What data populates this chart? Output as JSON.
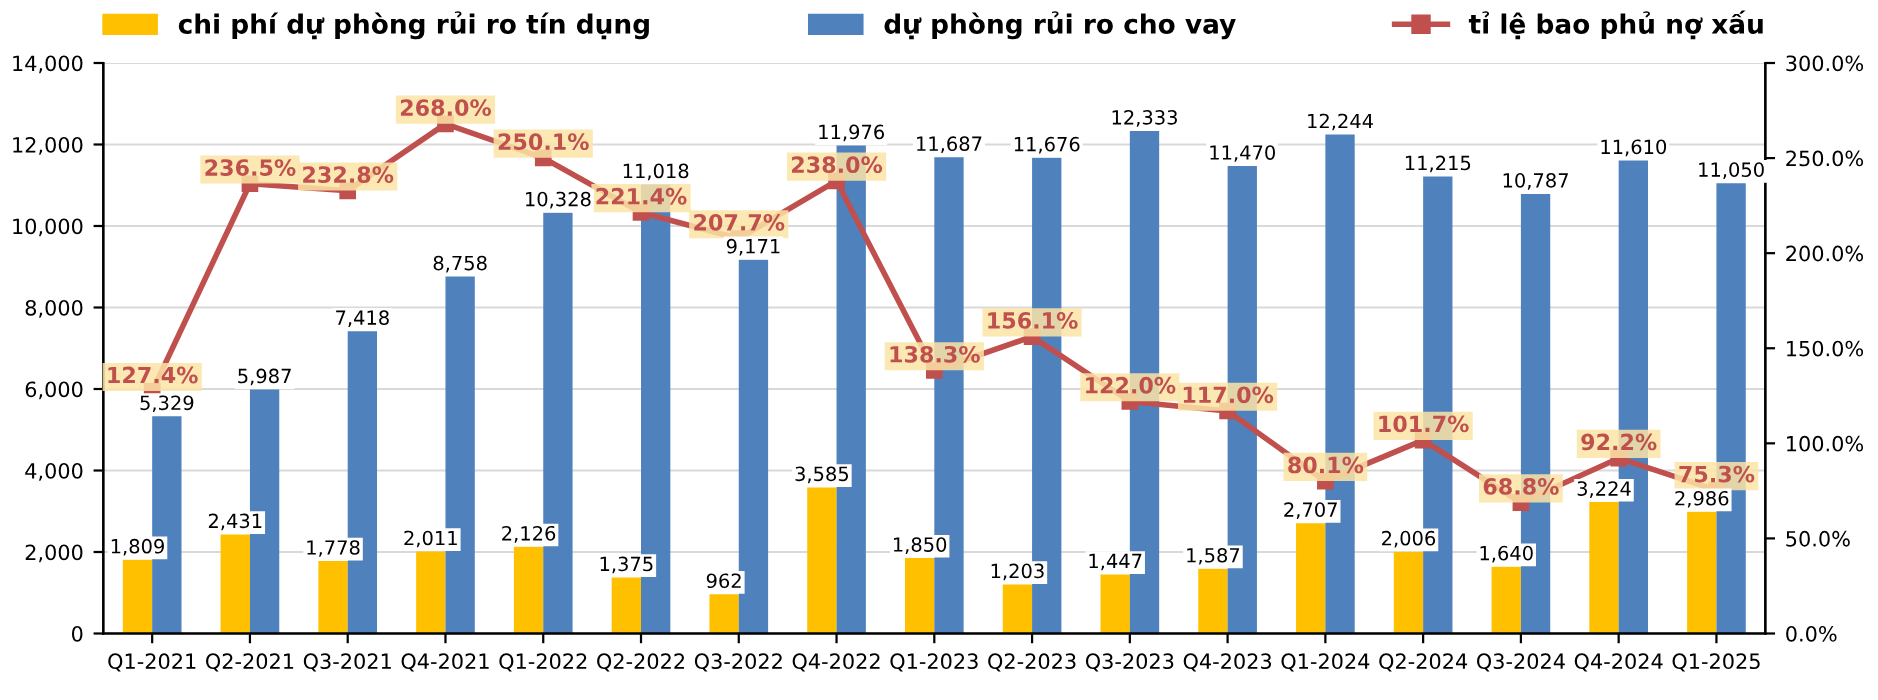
{
  "chart_data": {
    "type": "bar",
    "categories": [
      "Q1-2021",
      "Q2-2021",
      "Q3-2021",
      "Q4-2021",
      "Q1-2022",
      "Q2-2022",
      "Q3-2022",
      "Q4-2022",
      "Q1-2023",
      "Q2-2023",
      "Q3-2023",
      "Q4-2023",
      "Q1-2024",
      "Q2-2024",
      "Q3-2024",
      "Q4-2024",
      "Q1-2025"
    ],
    "series": [
      {
        "name": "chi phí dự phòng rủi ro tín dụng",
        "color": "#ffc000",
        "values": [
          1809,
          2431,
          1778,
          2011,
          2126,
          1375,
          962,
          3585,
          1850,
          1203,
          1447,
          1587,
          2707,
          2006,
          1640,
          3224,
          2986
        ],
        "value_labels": [
          "1,809",
          "2,431",
          "1,778",
          "2,011",
          "2,126",
          "1,375",
          "962",
          "3,585",
          "1,850",
          "1,203",
          "1,447",
          "1,587",
          "2,707",
          "2,006",
          "1,640",
          "3,224",
          "2,986"
        ]
      },
      {
        "name": "dự phòng rủi ro cho vay",
        "color": "#4f81bd",
        "values": [
          5329,
          5987,
          7418,
          8758,
          10328,
          11018,
          9171,
          11976,
          11687,
          11676,
          12333,
          11470,
          12244,
          11215,
          10787,
          11610,
          11050
        ],
        "value_labels": [
          "5,329",
          "5,987",
          "7,418",
          "8,758",
          "10,328",
          "11,018",
          "9,171",
          "11,976",
          "11,687",
          "11,676",
          "12,333",
          "11,470",
          "12,244",
          "11,215",
          "10,787",
          "11,610",
          "11,050"
        ]
      },
      {
        "name": "tỉ lệ bao phủ nợ xấu",
        "type": "line",
        "axis": "y2",
        "color": "#c0504d",
        "marker": "square",
        "values": [
          127.4,
          236.5,
          232.8,
          268.0,
          250.1,
          221.4,
          207.7,
          238.0,
          138.3,
          156.1,
          122.0,
          117.0,
          80.1,
          101.7,
          68.8,
          92.2,
          75.3
        ],
        "value_labels": [
          "127.4%",
          "236.5%",
          "232.8%",
          "268.0%",
          "250.1%",
          "221.4%",
          "207.7%",
          "238.0%",
          "138.3%",
          "156.1%",
          "122.0%",
          "117.0%",
          "80.1%",
          "101.7%",
          "68.8%",
          "92.2%",
          "75.3%"
        ]
      }
    ],
    "ylim": [
      0,
      14000
    ],
    "yticks": [
      0,
      {
        "value": 2000,
        "label": "2,000"
      },
      {
        "value": 4000,
        "label": "4,000"
      },
      {
        "value": 6000,
        "label": "6,000"
      },
      {
        "value": 8000,
        "label": "8,000"
      },
      {
        "value": 10000,
        "label": "10,000"
      },
      {
        "value": 12000,
        "label": "12,000"
      },
      {
        "value": 14000,
        "label": "14,000"
      }
    ],
    "y2lim": [
      0,
      300
    ],
    "y2ticks": [
      {
        "value": 0,
        "label": "0.0%"
      },
      {
        "value": 50,
        "label": "50.0%"
      },
      {
        "value": 100,
        "label": "100.0%"
      },
      {
        "value": 150,
        "label": "150.0%"
      },
      {
        "value": 200,
        "label": "200.0%"
      },
      {
        "value": 250,
        "label": "250.0%"
      },
      {
        "value": 300,
        "label": "300.0%"
      }
    ],
    "grid": "y",
    "legend": "top"
  }
}
